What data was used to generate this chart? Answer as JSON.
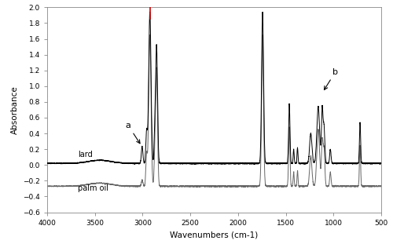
{
  "xlim": [
    4000,
    500
  ],
  "ylim": [
    -0.6,
    2.0
  ],
  "yticks": [
    -0.6,
    -0.4,
    -0.2,
    0.0,
    0.2,
    0.4,
    0.6,
    0.8,
    1.0,
    1.2,
    1.4,
    1.6,
    1.8,
    2.0
  ],
  "xticks": [
    4000,
    3500,
    3000,
    2500,
    2000,
    1500,
    1000,
    500
  ],
  "xlabel": "Wavenumbers (cm-1)",
  "ylabel": "Absorbance",
  "lard_label": "lard",
  "palm_label": "palm oil",
  "annotation_a": "a",
  "annotation_b": "b",
  "lard_color": "#000000",
  "palm_color": "#555555",
  "red_line_color": "#cc0000",
  "background_color": "#ffffff",
  "figsize": [
    5.0,
    3.11
  ],
  "dpi": 100,
  "lard_baseline": 0.02,
  "palm_baseline": -0.27,
  "lw": 0.7
}
